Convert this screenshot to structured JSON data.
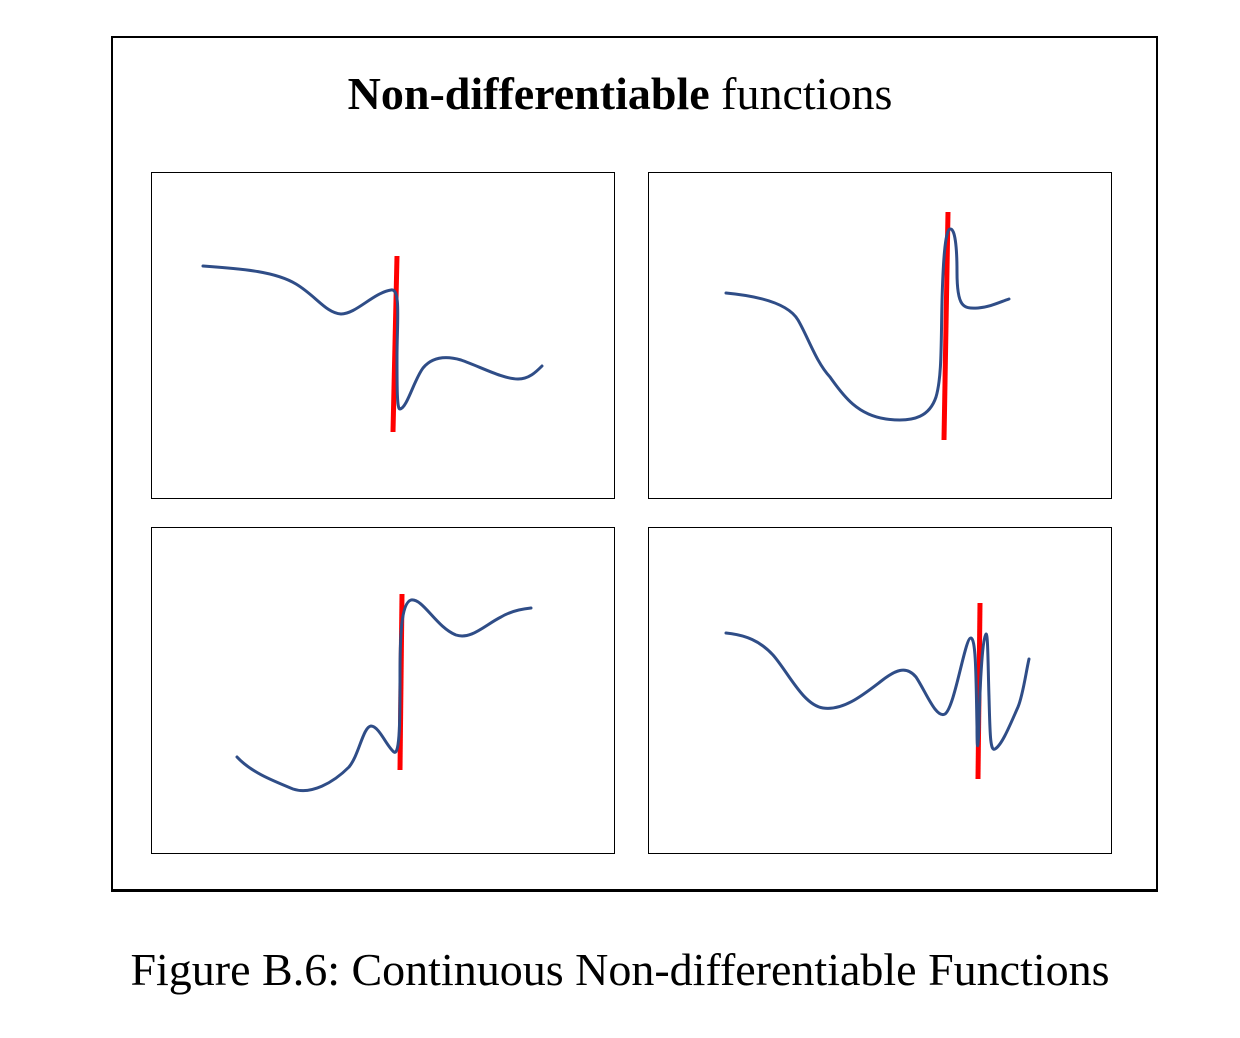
{
  "figure": {
    "title_bold": "Non-differentiable",
    "title_regular": " functions",
    "caption": "Figure B.6: Continuous Non-differentiable Functions"
  },
  "colors": {
    "curve": "#2f4d87",
    "tangent": "#ff0000",
    "frame": "#000000"
  },
  "panels": [
    {
      "id": "top-left",
      "curve_shape": "gentle dip then sharp vertical drop and recovery"
    },
    {
      "id": "top-right",
      "curve_shape": "deep valley then sharp vertical spike"
    },
    {
      "id": "bottom-left",
      "curve_shape": "small bump then sharp vertical rise"
    },
    {
      "id": "bottom-right",
      "curve_shape": "waves then sharp vertical oscillation"
    }
  ]
}
